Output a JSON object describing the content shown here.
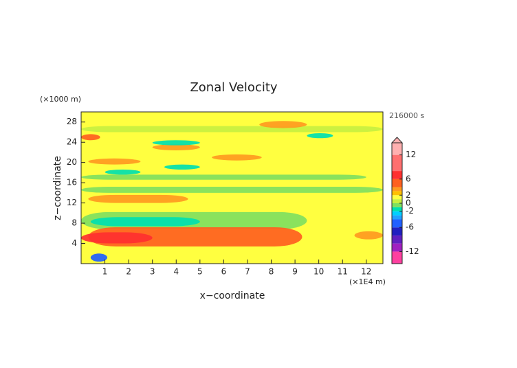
{
  "chart_data": {
    "type": "contour",
    "title": "Zonal Velocity",
    "y_unit": "(×1000 m)",
    "x_unit": "(×1E4 m)",
    "time_label": "216000 s",
    "xlabel": "x−coordinate",
    "ylabel": "z−coordinate",
    "xlim": [
      0,
      12.7
    ],
    "ylim": [
      0,
      30
    ],
    "xticks": [
      1,
      2,
      3,
      4,
      5,
      6,
      7,
      8,
      9,
      10,
      11,
      12
    ],
    "yticks": [
      4,
      8,
      12,
      16,
      20,
      24,
      28
    ],
    "background_value": 1,
    "features": [
      {
        "x": [
          0,
          12.7
        ],
        "z": [
          26,
          27.2
        ],
        "value": 0.5
      },
      {
        "x": [
          0,
          12.7
        ],
        "z": [
          14,
          15.2
        ],
        "value": -0.5
      },
      {
        "x": [
          0,
          12
        ],
        "z": [
          16.6,
          17.6
        ],
        "value": -0.5
      },
      {
        "x": [
          0,
          9.5
        ],
        "z": [
          6.8,
          10.2
        ],
        "value": -0.5
      },
      {
        "x": [
          0.4,
          5
        ],
        "z": [
          7.4,
          9.2
        ],
        "value": -2
      },
      {
        "x": [
          0.3,
          9.3
        ],
        "z": [
          3.4,
          7.2
        ],
        "value": 4
      },
      {
        "x": [
          0,
          3
        ],
        "z": [
          4,
          6.2
        ],
        "value": 6
      },
      {
        "x": [
          0.3,
          4.5
        ],
        "z": [
          12,
          13.6
        ],
        "value": 3
      },
      {
        "x": [
          0.3,
          2.5
        ],
        "z": [
          19.6,
          20.8
        ],
        "value": 3
      },
      {
        "x": [
          5.5,
          7.6
        ],
        "z": [
          20.4,
          21.6
        ],
        "value": 3
      },
      {
        "x": [
          3,
          5
        ],
        "z": [
          22.4,
          23.6
        ],
        "value": 3
      },
      {
        "x": [
          7.5,
          9.5
        ],
        "z": [
          26.8,
          28.2
        ],
        "value": 3
      },
      {
        "x": [
          0,
          0.8
        ],
        "z": [
          24.4,
          25.6
        ],
        "value": 4
      },
      {
        "x": [
          3,
          5
        ],
        "z": [
          23.4,
          24.4
        ],
        "value": -2
      },
      {
        "x": [
          9.5,
          10.6
        ],
        "z": [
          24.8,
          25.8
        ],
        "value": -2
      },
      {
        "x": [
          3.5,
          5
        ],
        "z": [
          18.6,
          19.6
        ],
        "value": -2
      },
      {
        "x": [
          1,
          2.5
        ],
        "z": [
          17.6,
          18.6
        ],
        "value": -2
      },
      {
        "x": [
          11.5,
          12.7
        ],
        "z": [
          4.8,
          6.4
        ],
        "value": 3
      },
      {
        "x": [
          0.4,
          1.1
        ],
        "z": [
          0.4,
          2
        ],
        "value": -6
      }
    ],
    "colorbar": {
      "lim": [
        -15,
        15
      ],
      "levels": [
        -15,
        -12,
        -10,
        -8,
        -6,
        -4,
        -3,
        -2,
        -1,
        0,
        1,
        2,
        3,
        4,
        6,
        8,
        12,
        15
      ],
      "colors": [
        "#ff40a0",
        "#a020c0",
        "#6020c0",
        "#2020c0",
        "#2060ff",
        "#20a0ff",
        "#00d0ff",
        "#00e0b0",
        "#80e060",
        "#c8f040",
        "#ffff40",
        "#ffc000",
        "#ff9a20",
        "#ff6020",
        "#ff3030",
        "#ff7070",
        "#ffb0b0"
      ],
      "ticks": [
        -12,
        -6,
        -2,
        0,
        2,
        6,
        12
      ]
    }
  }
}
